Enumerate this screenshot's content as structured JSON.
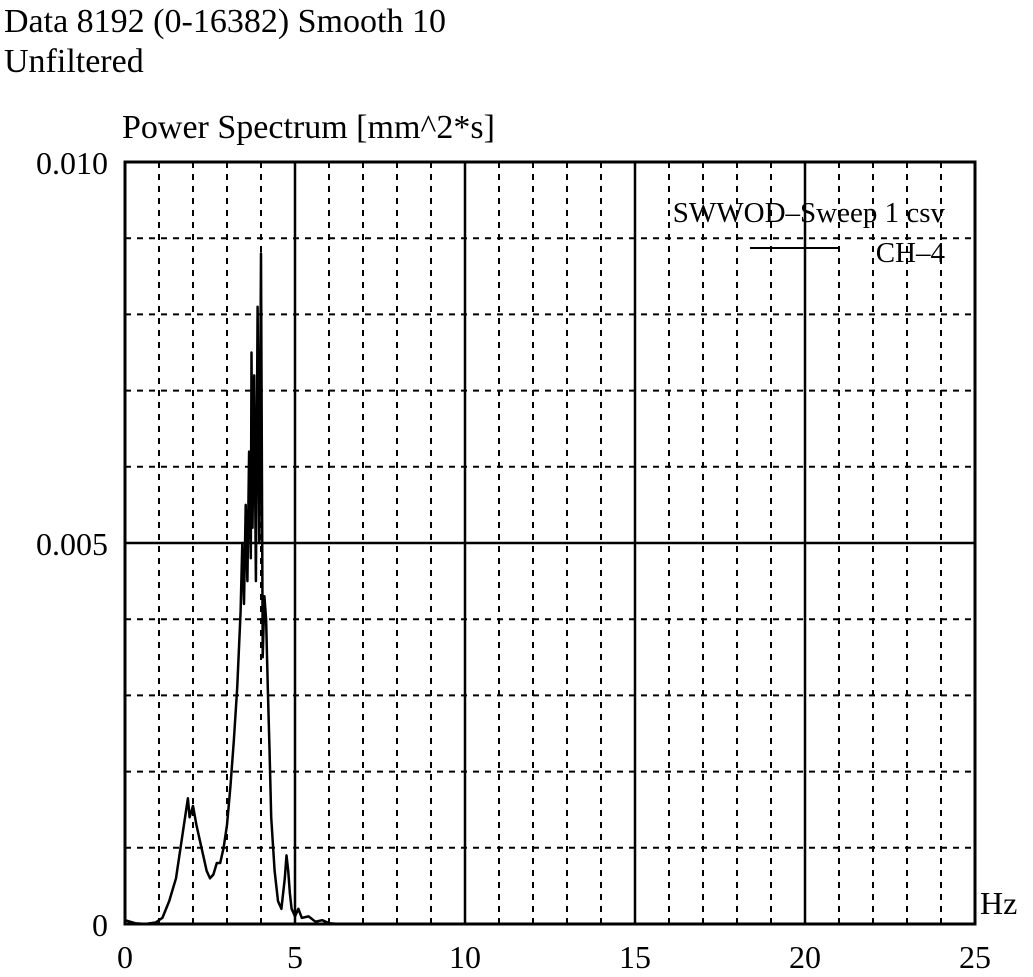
{
  "header": {
    "line1": "Data 8192 (0-16382) Smooth 10",
    "line2": "Unfiltered"
  },
  "chart_data": {
    "type": "line",
    "title": "",
    "xlabel": "Hz",
    "ylabel": "Power Spectrum [mm^2*s]",
    "xlim": [
      0,
      25
    ],
    "ylim": [
      0,
      0.01
    ],
    "x_ticks": [
      0,
      5,
      10,
      15,
      20,
      25
    ],
    "x_tick_labels": [
      "0",
      "5",
      "10",
      "15",
      "20",
      "25"
    ],
    "y_ticks": [
      0,
      0.005,
      0.01
    ],
    "y_tick_labels": [
      "0",
      "0.005",
      "0.010"
    ],
    "grid": true,
    "legend": {
      "position": "top-right",
      "title": "SWWOD–Sweep 1 csv",
      "entries": [
        "CH–4"
      ]
    },
    "series": [
      {
        "name": "CH–4",
        "color": "#000000",
        "x": [
          0.0,
          0.3,
          0.6,
          0.9,
          1.1,
          1.3,
          1.5,
          1.6,
          1.7,
          1.8,
          1.85,
          1.9,
          2.0,
          2.1,
          2.2,
          2.3,
          2.4,
          2.5,
          2.6,
          2.7,
          2.8,
          2.9,
          3.0,
          3.1,
          3.2,
          3.3,
          3.4,
          3.45,
          3.5,
          3.55,
          3.6,
          3.65,
          3.7,
          3.72,
          3.75,
          3.8,
          3.85,
          3.9,
          3.95,
          4.0,
          4.05,
          4.1,
          4.15,
          4.2,
          4.25,
          4.3,
          4.4,
          4.5,
          4.6,
          4.7,
          4.75,
          4.8,
          4.85,
          4.9,
          5.0,
          5.1,
          5.2,
          5.4,
          5.6,
          5.8,
          6.0,
          6.3,
          7.0
        ],
        "y": [
          5e-05,
          1e-05,
          0.0,
          2e-05,
          8e-05,
          0.0003,
          0.0006,
          0.0009,
          0.0012,
          0.0015,
          0.00165,
          0.0014,
          0.00155,
          0.0013,
          0.0011,
          0.0009,
          0.0007,
          0.0006,
          0.00065,
          0.0008,
          0.0008,
          0.001,
          0.0013,
          0.0018,
          0.0024,
          0.0031,
          0.0041,
          0.005,
          0.0042,
          0.0055,
          0.0045,
          0.0062,
          0.0048,
          0.0075,
          0.0052,
          0.0072,
          0.0045,
          0.0081,
          0.005,
          0.0088,
          0.0035,
          0.0043,
          0.004,
          0.0031,
          0.0023,
          0.0014,
          0.0007,
          0.0003,
          0.0002,
          0.0006,
          0.0009,
          0.0007,
          0.0004,
          0.0002,
          0.0001,
          0.0002,
          8e-05,
          0.0001,
          3e-05,
          5e-05,
          1e-05,
          0.0,
          0.0
        ]
      }
    ]
  }
}
